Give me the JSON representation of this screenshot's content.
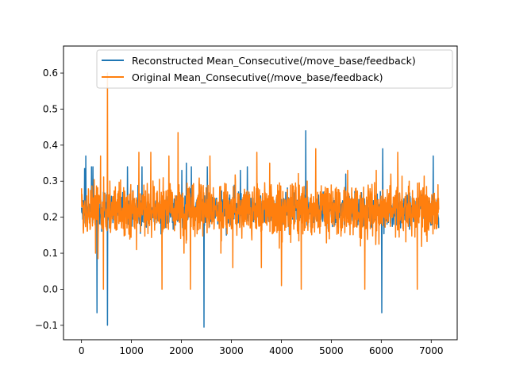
{
  "chart_data": {
    "type": "line",
    "title": "",
    "xlabel": "",
    "ylabel": "",
    "xlim": [
      -360,
      7520
    ],
    "ylim": [
      -0.14,
      0.675
    ],
    "xticks": [
      0,
      1000,
      2000,
      3000,
      4000,
      5000,
      6000,
      7000
    ],
    "xtick_labels": [
      "0",
      "1000",
      "2000",
      "3000",
      "4000",
      "5000",
      "6000",
      "7000"
    ],
    "yticks": [
      -0.1,
      0.0,
      0.1,
      0.2,
      0.3,
      0.4,
      0.5,
      0.6
    ],
    "ytick_labels": [
      "−0.1",
      "0.0",
      "0.1",
      "0.2",
      "0.3",
      "0.4",
      "0.5",
      "0.6"
    ],
    "grid": false,
    "legend_position": "upper-right",
    "series": [
      {
        "name": "Reconstructed Mean_Consecutive(/move_base/feedback)",
        "color": "#1f77b4",
        "baseline": 0.22,
        "spikes": [
          [
            60,
            0.335
          ],
          [
            85,
            0.37
          ],
          [
            200,
            0.34
          ],
          [
            230,
            0.34
          ],
          [
            310,
            -0.065
          ],
          [
            520,
            -0.1
          ],
          [
            920,
            0.34
          ],
          [
            1210,
            0.34
          ],
          [
            2010,
            0.33
          ],
          [
            2100,
            0.35
          ],
          [
            2200,
            0.34
          ],
          [
            2450,
            -0.105
          ],
          [
            2520,
            0.34
          ],
          [
            3180,
            0.33
          ],
          [
            3320,
            0.34
          ],
          [
            4490,
            0.44
          ],
          [
            5290,
            0.32
          ],
          [
            6010,
            -0.065
          ],
          [
            6030,
            0.39
          ],
          [
            7040,
            0.37
          ],
          [
            7150,
            0.17
          ]
        ]
      },
      {
        "name": "Original Mean_Consecutive(/move_base/feedback)",
        "color": "#ff7f0e",
        "baseline": 0.22,
        "spikes": [
          [
            0,
            0.28
          ],
          [
            280,
            0.1
          ],
          [
            330,
            0.085
          ],
          [
            380,
            0.37
          ],
          [
            440,
            0.0
          ],
          [
            520,
            0.6
          ],
          [
            1100,
            0.11
          ],
          [
            1150,
            0.38
          ],
          [
            1390,
            0.38
          ],
          [
            1610,
            0.0
          ],
          [
            1750,
            0.37
          ],
          [
            1930,
            0.435
          ],
          [
            2050,
            0.1
          ],
          [
            2180,
            0.0
          ],
          [
            2570,
            0.37
          ],
          [
            2790,
            0.1
          ],
          [
            3030,
            0.06
          ],
          [
            3080,
            0.3
          ],
          [
            3510,
            0.38
          ],
          [
            3600,
            0.06
          ],
          [
            3770,
            0.35
          ],
          [
            4000,
            0.01
          ],
          [
            4190,
            0.13
          ],
          [
            4400,
            0.0
          ],
          [
            4690,
            0.39
          ],
          [
            4960,
            0.14
          ],
          [
            5330,
            0.33
          ],
          [
            5670,
            0.0
          ],
          [
            5900,
            0.33
          ],
          [
            6190,
            0.32
          ],
          [
            6330,
            0.38
          ],
          [
            6560,
            0.3
          ],
          [
            6720,
            0.0
          ],
          [
            6900,
            0.15
          ]
        ]
      }
    ]
  }
}
